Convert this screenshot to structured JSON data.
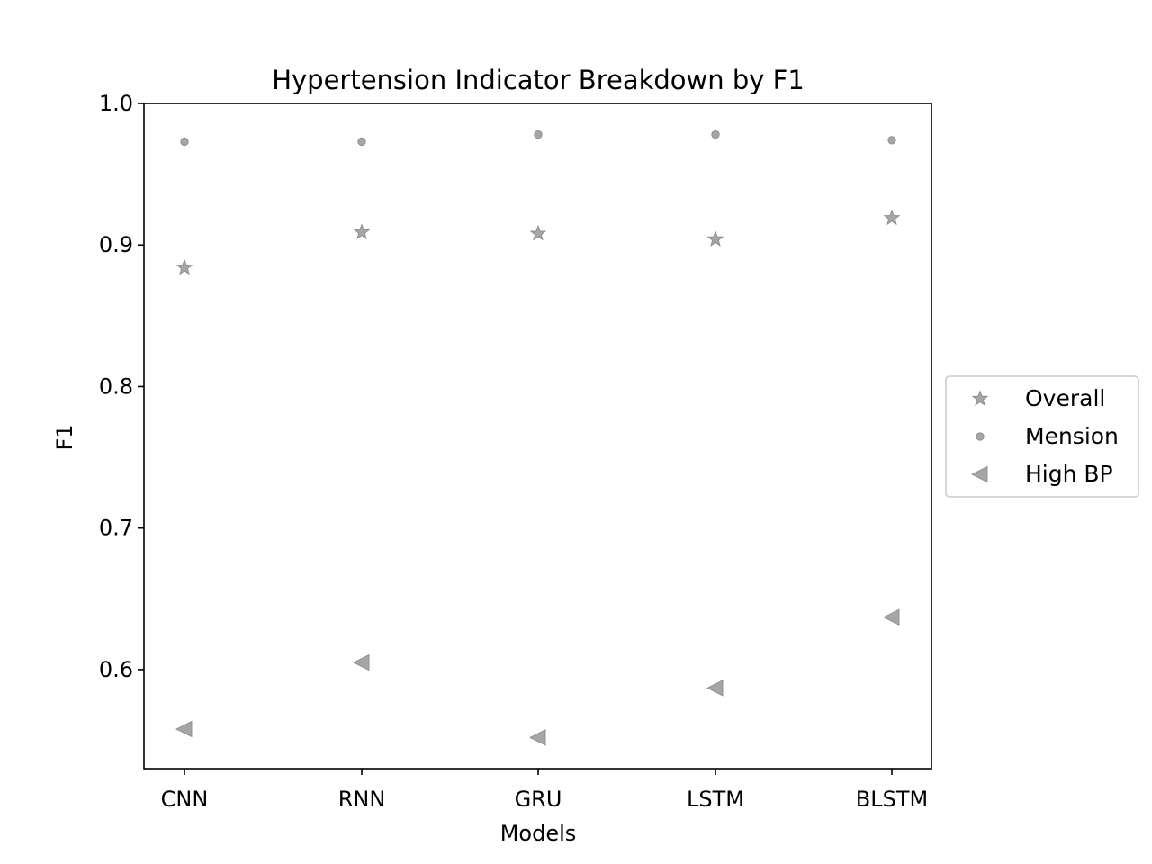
{
  "chart_data": {
    "type": "scatter",
    "title": "Hypertension Indicator Breakdown by F1",
    "xlabel": "Models",
    "ylabel": "F1",
    "categories": [
      "CNN",
      "RNN",
      "GRU",
      "LSTM",
      "BLSTM"
    ],
    "ylim": [
      0.53,
      1.0
    ],
    "yticks": [
      0.6,
      0.7,
      0.8,
      0.9,
      1.0
    ],
    "ytick_labels": [
      "0.6",
      "0.7",
      "0.8",
      "0.9",
      "1.0"
    ],
    "grid": false,
    "legend_position": "center-right, outside plot",
    "series": [
      {
        "name": "Overall",
        "marker": "star",
        "color": "#a6a6a6",
        "values": [
          0.884,
          0.909,
          0.908,
          0.904,
          0.919
        ]
      },
      {
        "name": "Mension",
        "marker": "circle",
        "color": "#a6a6a6",
        "values": [
          0.973,
          0.973,
          0.978,
          0.978,
          0.974
        ]
      },
      {
        "name": "High BP",
        "marker": "triangle-left",
        "color": "#a6a6a6",
        "values": [
          0.558,
          0.605,
          0.552,
          0.587,
          0.637
        ]
      }
    ]
  }
}
